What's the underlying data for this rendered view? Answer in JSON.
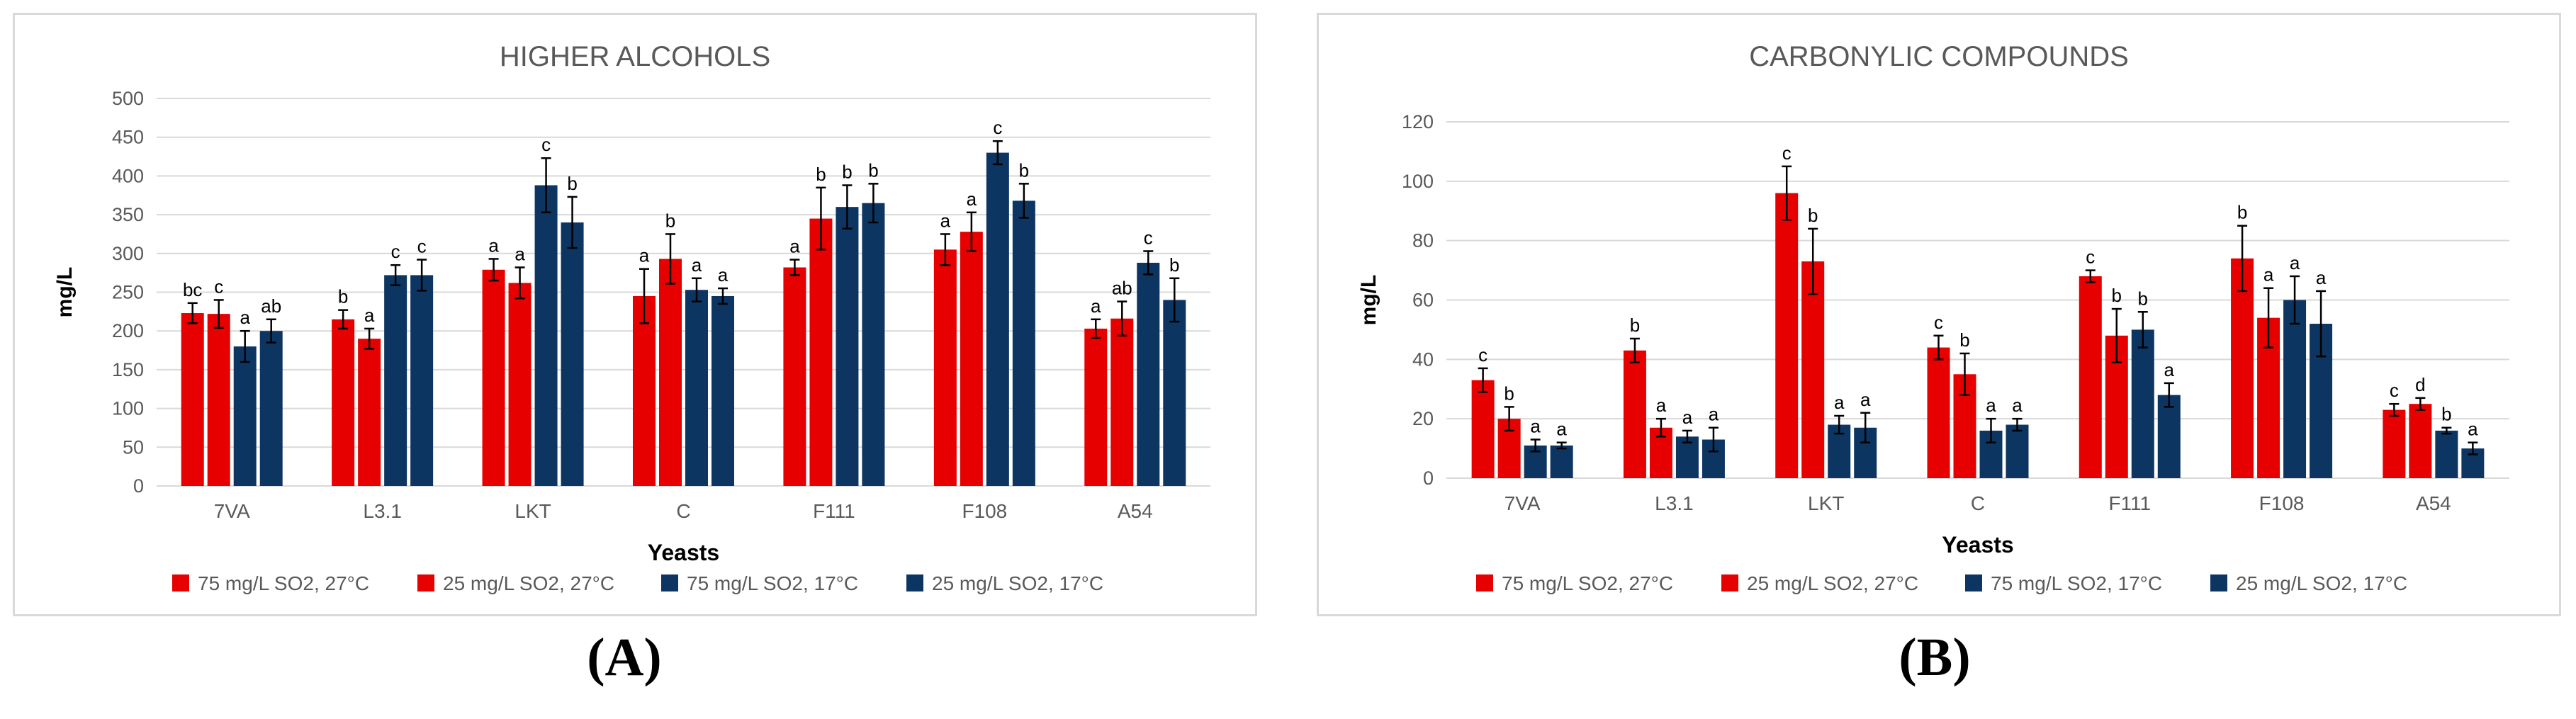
{
  "colors": {
    "red": "#e60000",
    "navy": "#0d3562",
    "grid": "#d9d9d9",
    "text": "#595959"
  },
  "panel_labels": {
    "a": "(A)",
    "b": "(B)"
  },
  "chart_data": [
    {
      "type": "bar",
      "title": "HIGHER ALCOHOLS",
      "xlabel": "Yeasts",
      "ylabel": "mg/L",
      "ylim": [
        0,
        500
      ],
      "ytick_step": 50,
      "categories": [
        "7VA",
        "L3.1",
        "LKT",
        "C",
        "F111",
        "F108",
        "A54"
      ],
      "series": [
        {
          "name": "75 mg/L SO2, 27°C",
          "color": "#e60000",
          "values": [
            223,
            215,
            279,
            245,
            282,
            305,
            203
          ],
          "errors": [
            13,
            12,
            14,
            35,
            10,
            20,
            12
          ],
          "letters": [
            "bc",
            "b",
            "a",
            "a",
            "a",
            "a",
            "a"
          ]
        },
        {
          "name": "25 mg/L SO2, 27°C",
          "color": "#e60000",
          "values": [
            222,
            190,
            262,
            293,
            345,
            328,
            216
          ],
          "errors": [
            18,
            13,
            20,
            32,
            40,
            25,
            22
          ],
          "letters": [
            "c",
            "a",
            "a",
            "b",
            "b",
            "a",
            "ab"
          ]
        },
        {
          "name": "75 mg/L SO2, 17°C",
          "color": "#0d3562",
          "values": [
            180,
            272,
            388,
            253,
            360,
            430,
            288
          ],
          "errors": [
            20,
            13,
            35,
            15,
            28,
            15,
            15
          ],
          "letters": [
            "a",
            "c",
            "c",
            "a",
            "b",
            "c",
            "c"
          ]
        },
        {
          "name": "25 mg/L SO2, 17°C",
          "color": "#0d3562",
          "values": [
            200,
            272,
            340,
            245,
            365,
            368,
            240
          ],
          "errors": [
            15,
            20,
            33,
            10,
            25,
            22,
            28
          ],
          "letters": [
            "ab",
            "c",
            "b",
            "a",
            "b",
            "b",
            "b"
          ]
        }
      ],
      "legend": "bottom"
    },
    {
      "type": "bar",
      "title": "CARBONYLIC COMPOUNDS",
      "xlabel": "Yeasts",
      "ylabel": "mg/L",
      "ylim": [
        0,
        120
      ],
      "ytick_step": 20,
      "categories": [
        "7VA",
        "L3.1",
        "LKT",
        "C",
        "F111",
        "F108",
        "A54"
      ],
      "series": [
        {
          "name": "75 mg/L SO2, 27°C",
          "color": "#e60000",
          "values": [
            33,
            43,
            96,
            44,
            68,
            74,
            23
          ],
          "errors": [
            4,
            4,
            9,
            4,
            2,
            11,
            2
          ],
          "letters": [
            "c",
            "b",
            "c",
            "c",
            "c",
            "b",
            "c"
          ]
        },
        {
          "name": "25 mg/L SO2, 27°C",
          "color": "#e60000",
          "values": [
            20,
            17,
            73,
            35,
            48,
            54,
            25
          ],
          "errors": [
            4,
            3,
            11,
            7,
            9,
            10,
            2
          ],
          "letters": [
            "b",
            "a",
            "b",
            "b",
            "b",
            "a",
            "d"
          ]
        },
        {
          "name": "75 mg/L SO2, 17°C",
          "color": "#0d3562",
          "values": [
            11,
            14,
            18,
            16,
            50,
            60,
            16
          ],
          "errors": [
            2,
            2,
            3,
            4,
            6,
            8,
            1
          ],
          "letters": [
            "a",
            "a",
            "a",
            "a",
            "b",
            "a",
            "b"
          ]
        },
        {
          "name": "25 mg/L SO2, 17°C",
          "color": "#0d3562",
          "values": [
            11,
            13,
            17,
            18,
            28,
            52,
            10
          ],
          "errors": [
            1,
            4,
            5,
            2,
            4,
            11,
            2
          ],
          "letters": [
            "a",
            "a",
            "a",
            "a",
            "a",
            "a",
            "a"
          ]
        }
      ],
      "legend": "bottom"
    }
  ]
}
